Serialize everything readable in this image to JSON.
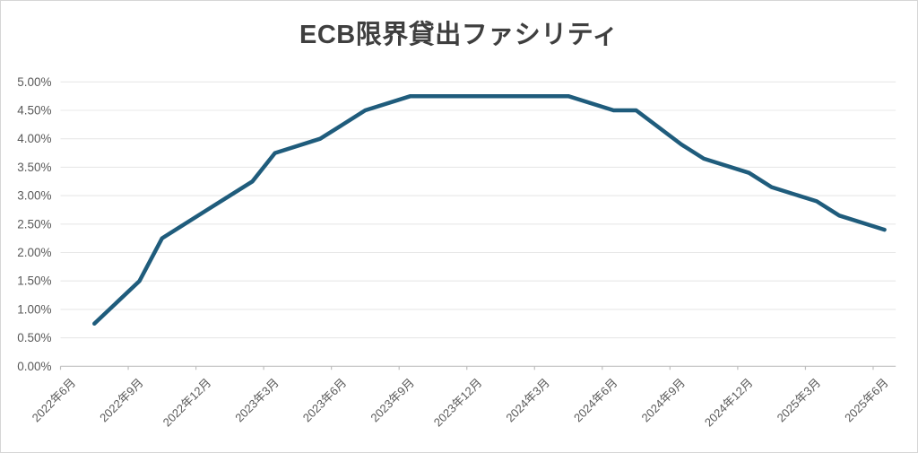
{
  "chart_data": {
    "type": "line",
    "title": "ECB限界貸出ファシリティ",
    "x_axis": {
      "unit": "month",
      "start": "2022-06",
      "end": "2025-06",
      "month_count": 37,
      "tick_interval_months": 3,
      "label_rotation_deg": -45,
      "tick_labels": [
        "2022年6月",
        "2022年9月",
        "2022年12月",
        "2023年3月",
        "2023年6月",
        "2023年9月",
        "2023年12月",
        "2024年3月",
        "2024年6月",
        "2024年9月",
        "2024年12月",
        "2025年3月",
        "2025年6月"
      ]
    },
    "y_axis": {
      "min": 0,
      "max": 5,
      "step": 0.5,
      "format": "percent",
      "tick_labels": [
        "0.00%",
        "0.50%",
        "1.00%",
        "1.50%",
        "2.00%",
        "2.50%",
        "3.00%",
        "3.50%",
        "4.00%",
        "4.50%",
        "5.00%"
      ]
    },
    "grid": "horizontal",
    "legend": "none",
    "series": [
      {
        "name": "ECB限界貸出ファシリティ",
        "color": "#1f5c7c",
        "points": [
          {
            "month": "2022-07",
            "value": 0.75
          },
          {
            "month": "2022-09",
            "value": 1.5
          },
          {
            "month": "2022-10",
            "value": 2.25
          },
          {
            "month": "2022-12",
            "value": 2.75
          },
          {
            "month": "2023-02",
            "value": 3.25
          },
          {
            "month": "2023-03",
            "value": 3.75
          },
          {
            "month": "2023-05",
            "value": 4.0
          },
          {
            "month": "2023-06",
            "value": 4.25
          },
          {
            "month": "2023-07",
            "value": 4.5
          },
          {
            "month": "2023-09",
            "value": 4.75
          },
          {
            "month": "2023-10",
            "value": 4.75
          },
          {
            "month": "2023-12",
            "value": 4.75
          },
          {
            "month": "2024-01",
            "value": 4.75
          },
          {
            "month": "2024-03",
            "value": 4.75
          },
          {
            "month": "2024-04",
            "value": 4.75
          },
          {
            "month": "2024-06",
            "value": 4.5
          },
          {
            "month": "2024-07",
            "value": 4.5
          },
          {
            "month": "2024-09",
            "value": 3.9
          },
          {
            "month": "2024-10",
            "value": 3.65
          },
          {
            "month": "2024-12",
            "value": 3.4
          },
          {
            "month": "2025-01",
            "value": 3.15
          },
          {
            "month": "2025-03",
            "value": 2.9
          },
          {
            "month": "2025-04",
            "value": 2.65
          },
          {
            "month": "2025-06",
            "value": 2.4
          }
        ]
      }
    ]
  },
  "colors": {
    "line": "#1f5c7c",
    "gridline": "#e8e8e8",
    "axis": "#bfbfbf",
    "tick_label": "#595959",
    "title": "#3f3f3f",
    "background": "#ffffff",
    "border": "#d6d6d6"
  }
}
